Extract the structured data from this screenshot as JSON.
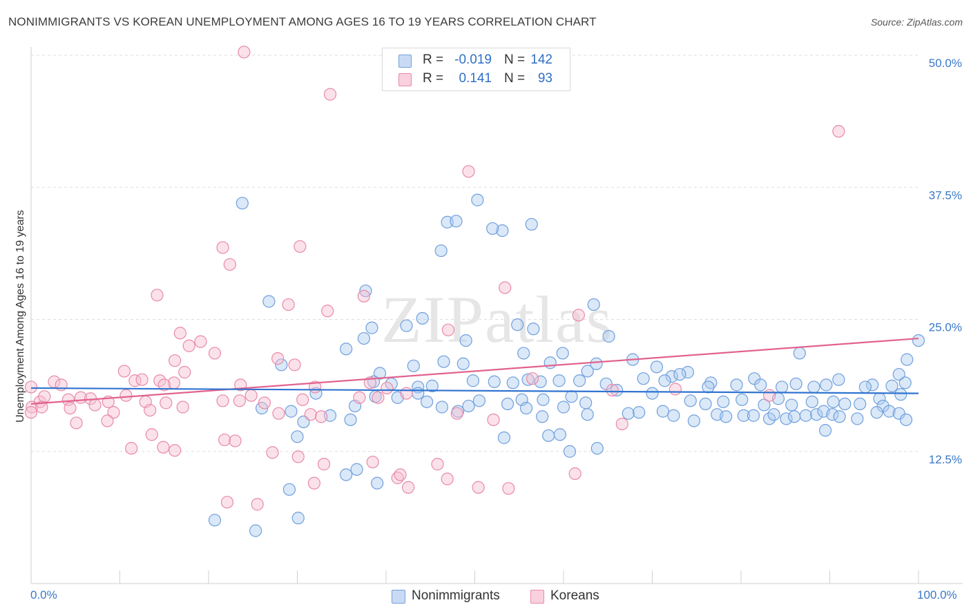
{
  "title": "NONIMMIGRANTS VS KOREAN UNEMPLOYMENT AMONG AGES 16 TO 19 YEARS CORRELATION CHART",
  "source": "Source: ZipAtlas.com",
  "watermark": "ZIPatlas",
  "legend_top": {
    "rows": [
      {
        "r_label": "R =",
        "r_value": "-0.019",
        "n_label": "N =",
        "n_value": "142"
      },
      {
        "r_label": "R =",
        "r_value": "0.141",
        "n_label": "N =",
        "n_value": "93"
      }
    ]
  },
  "legend_bottom": [
    "Nonimmigrants",
    "Koreans"
  ],
  "colors": {
    "blue_fill": "#aecbef",
    "blue_stroke": "#6f9fdc",
    "blue_line": "#2f73d0",
    "pink_fill": "#f6bfd0",
    "pink_stroke": "#e889a8",
    "pink_line": "#e2628f",
    "tick_text": "#3a78c9",
    "grid": "#dddddd"
  },
  "chart_data": {
    "type": "scatter",
    "title": "NONIMMIGRANTS VS KOREAN UNEMPLOYMENT AMONG AGES 16 TO 19 YEARS CORRELATION CHART",
    "xlabel": "",
    "ylabel": "Unemployment Among Ages 16 to 19 years",
    "xlim": [
      0,
      100
    ],
    "ylim": [
      0,
      50
    ],
    "x_tick_labels": [
      "0.0%",
      "100.0%"
    ],
    "y_ticks": [
      12.5,
      25.0,
      37.5,
      50.0
    ],
    "y_tick_labels": [
      "12.5%",
      "25.0%",
      "37.5%",
      "50.0%"
    ],
    "grid": true,
    "legend_position": "top-center",
    "series": [
      {
        "name": "Nonimmigrants",
        "r": -0.019,
        "n": 142,
        "trend": [
          [
            0,
            18.5
          ],
          [
            100,
            18.0
          ]
        ],
        "points": [
          [
            23.8,
            36.0
          ],
          [
            50.3,
            36.3
          ],
          [
            46.9,
            34.2
          ],
          [
            47.9,
            34.3
          ],
          [
            53.1,
            33.4
          ],
          [
            52.0,
            33.6
          ],
          [
            56.4,
            34.0
          ],
          [
            46.2,
            31.5
          ],
          [
            37.7,
            27.7
          ],
          [
            26.8,
            26.7
          ],
          [
            63.4,
            26.4
          ],
          [
            44.1,
            25.1
          ],
          [
            42.3,
            24.4
          ],
          [
            54.8,
            24.5
          ],
          [
            56.6,
            24.1
          ],
          [
            38.4,
            24.2
          ],
          [
            37.5,
            23.2
          ],
          [
            49.0,
            23.0
          ],
          [
            65.1,
            23.4
          ],
          [
            100.0,
            23.0
          ],
          [
            59.9,
            21.8
          ],
          [
            35.5,
            22.2
          ],
          [
            55.5,
            21.8
          ],
          [
            98.7,
            21.2
          ],
          [
            86.6,
            21.8
          ],
          [
            28.2,
            20.7
          ],
          [
            48.7,
            20.8
          ],
          [
            43.1,
            20.6
          ],
          [
            39.3,
            19.9
          ],
          [
            46.5,
            21.0
          ],
          [
            63.7,
            20.8
          ],
          [
            58.5,
            20.9
          ],
          [
            67.8,
            21.2
          ],
          [
            70.5,
            20.5
          ],
          [
            62.7,
            20.1
          ],
          [
            74.0,
            20.0
          ],
          [
            72.2,
            19.6
          ],
          [
            73.1,
            19.8
          ],
          [
            69.0,
            19.4
          ],
          [
            71.4,
            19.2
          ],
          [
            76.6,
            19.0
          ],
          [
            81.5,
            19.4
          ],
          [
            76.3,
            18.6
          ],
          [
            79.5,
            18.8
          ],
          [
            82.2,
            18.8
          ],
          [
            84.6,
            18.6
          ],
          [
            86.2,
            18.9
          ],
          [
            88.2,
            18.6
          ],
          [
            89.6,
            18.8
          ],
          [
            91.0,
            19.3
          ],
          [
            94.8,
            18.8
          ],
          [
            97.8,
            19.8
          ],
          [
            97.0,
            18.7
          ],
          [
            94.0,
            18.6
          ],
          [
            98.5,
            19.0
          ],
          [
            59.5,
            19.2
          ],
          [
            61.8,
            19.2
          ],
          [
            64.8,
            18.9
          ],
          [
            54.3,
            19.0
          ],
          [
            56.0,
            19.3
          ],
          [
            52.2,
            19.1
          ],
          [
            38.6,
            19.1
          ],
          [
            40.6,
            18.9
          ],
          [
            43.6,
            18.6
          ],
          [
            45.2,
            18.7
          ],
          [
            49.8,
            19.2
          ],
          [
            57.4,
            19.1
          ],
          [
            41.3,
            17.6
          ],
          [
            43.6,
            18.0
          ],
          [
            38.8,
            17.7
          ],
          [
            44.6,
            17.2
          ],
          [
            50.5,
            17.3
          ],
          [
            53.7,
            17.0
          ],
          [
            55.3,
            17.4
          ],
          [
            57.7,
            17.4
          ],
          [
            60.9,
            17.7
          ],
          [
            62.5,
            17.1
          ],
          [
            60.0,
            16.7
          ],
          [
            66.0,
            18.3
          ],
          [
            70.0,
            18.0
          ],
          [
            74.3,
            17.3
          ],
          [
            76.0,
            17.0
          ],
          [
            78.0,
            17.2
          ],
          [
            80.1,
            17.4
          ],
          [
            84.2,
            17.5
          ],
          [
            82.6,
            16.9
          ],
          [
            85.7,
            16.9
          ],
          [
            88.0,
            17.2
          ],
          [
            90.4,
            17.2
          ],
          [
            91.7,
            17.0
          ],
          [
            93.4,
            17.0
          ],
          [
            95.6,
            17.5
          ],
          [
            96.0,
            16.8
          ],
          [
            98.0,
            17.9
          ],
          [
            26.0,
            16.6
          ],
          [
            32.1,
            18.0
          ],
          [
            36.5,
            16.8
          ],
          [
            29.3,
            16.3
          ],
          [
            30.7,
            15.3
          ],
          [
            33.7,
            15.9
          ],
          [
            36.0,
            15.5
          ],
          [
            46.3,
            16.7
          ],
          [
            48.1,
            16.3
          ],
          [
            49.3,
            16.8
          ],
          [
            55.8,
            16.6
          ],
          [
            57.6,
            15.8
          ],
          [
            62.7,
            16.0
          ],
          [
            67.3,
            16.1
          ],
          [
            68.5,
            16.2
          ],
          [
            71.2,
            16.3
          ],
          [
            72.4,
            15.9
          ],
          [
            74.7,
            15.4
          ],
          [
            77.3,
            16.0
          ],
          [
            78.3,
            15.8
          ],
          [
            80.3,
            15.9
          ],
          [
            81.4,
            15.9
          ],
          [
            83.2,
            15.6
          ],
          [
            83.7,
            16.0
          ],
          [
            85.1,
            15.6
          ],
          [
            86.0,
            15.8
          ],
          [
            87.3,
            15.9
          ],
          [
            88.5,
            16.0
          ],
          [
            89.3,
            16.3
          ],
          [
            90.3,
            16.0
          ],
          [
            91.1,
            15.8
          ],
          [
            93.1,
            15.6
          ],
          [
            95.3,
            16.2
          ],
          [
            96.7,
            16.3
          ],
          [
            97.8,
            16.1
          ],
          [
            98.6,
            15.5
          ],
          [
            89.5,
            14.5
          ],
          [
            58.3,
            14.0
          ],
          [
            59.6,
            14.1
          ],
          [
            53.3,
            13.8
          ],
          [
            30.0,
            13.9
          ],
          [
            35.5,
            10.3
          ],
          [
            60.7,
            12.5
          ],
          [
            63.8,
            12.8
          ],
          [
            39.0,
            9.5
          ],
          [
            36.7,
            10.8
          ],
          [
            29.1,
            8.9
          ],
          [
            20.7,
            6.0
          ],
          [
            25.3,
            5.0
          ],
          [
            30.1,
            6.2
          ]
        ]
      },
      {
        "name": "Koreans",
        "r": 0.141,
        "n": 93,
        "trend": [
          [
            0,
            17.0
          ],
          [
            100,
            23.2
          ]
        ],
        "points": [
          [
            24.0,
            50.3
          ],
          [
            33.7,
            46.3
          ],
          [
            91.0,
            42.8
          ],
          [
            49.3,
            39.0
          ],
          [
            21.6,
            31.8
          ],
          [
            30.3,
            31.9
          ],
          [
            22.4,
            30.2
          ],
          [
            53.4,
            28.0
          ],
          [
            14.2,
            27.3
          ],
          [
            29.0,
            26.4
          ],
          [
            33.4,
            25.8
          ],
          [
            37.5,
            27.2
          ],
          [
            61.7,
            25.4
          ],
          [
            47.0,
            24.0
          ],
          [
            16.8,
            23.7
          ],
          [
            19.1,
            22.9
          ],
          [
            17.8,
            22.5
          ],
          [
            20.7,
            21.8
          ],
          [
            27.8,
            21.3
          ],
          [
            16.2,
            21.1
          ],
          [
            29.7,
            20.7
          ],
          [
            10.5,
            20.1
          ],
          [
            17.3,
            20.0
          ],
          [
            2.6,
            19.1
          ],
          [
            11.7,
            19.2
          ],
          [
            14.5,
            19.2
          ],
          [
            12.5,
            19.3
          ],
          [
            16.1,
            19.0
          ],
          [
            3.4,
            18.8
          ],
          [
            15.0,
            18.8
          ],
          [
            23.6,
            18.8
          ],
          [
            24.8,
            17.8
          ],
          [
            32.0,
            18.6
          ],
          [
            38.2,
            19.0
          ],
          [
            40.1,
            18.5
          ],
          [
            56.5,
            19.4
          ],
          [
            65.5,
            18.3
          ],
          [
            72.6,
            18.4
          ],
          [
            83.2,
            17.8
          ],
          [
            0.0,
            18.6
          ],
          [
            1.0,
            17.2
          ],
          [
            1.5,
            17.7
          ],
          [
            4.2,
            17.4
          ],
          [
            5.6,
            17.6
          ],
          [
            6.7,
            17.5
          ],
          [
            8.7,
            17.2
          ],
          [
            10.7,
            17.8
          ],
          [
            12.9,
            17.2
          ],
          [
            15.2,
            17.1
          ],
          [
            21.6,
            17.3
          ],
          [
            23.5,
            17.3
          ],
          [
            26.3,
            17.1
          ],
          [
            30.6,
            17.4
          ],
          [
            37.0,
            17.6
          ],
          [
            39.1,
            17.6
          ],
          [
            42.3,
            18.0
          ],
          [
            0.1,
            16.7
          ],
          [
            1.2,
            16.7
          ],
          [
            4.4,
            16.6
          ],
          [
            7.2,
            16.9
          ],
          [
            9.3,
            16.2
          ],
          [
            13.4,
            16.4
          ],
          [
            17.1,
            16.7
          ],
          [
            27.9,
            16.1
          ],
          [
            31.5,
            16.0
          ],
          [
            32.7,
            15.8
          ],
          [
            48.0,
            16.1
          ],
          [
            52.1,
            15.5
          ],
          [
            66.6,
            15.1
          ],
          [
            5.1,
            15.2
          ],
          [
            8.6,
            15.4
          ],
          [
            0.0,
            16.2
          ],
          [
            13.6,
            14.1
          ],
          [
            14.9,
            12.9
          ],
          [
            11.3,
            12.8
          ],
          [
            16.2,
            12.6
          ],
          [
            21.8,
            13.6
          ],
          [
            23.0,
            13.5
          ],
          [
            27.2,
            12.4
          ],
          [
            30.1,
            12.0
          ],
          [
            33.0,
            11.3
          ],
          [
            38.5,
            11.5
          ],
          [
            45.8,
            11.3
          ],
          [
            46.9,
            9.9
          ],
          [
            41.3,
            10.0
          ],
          [
            41.6,
            10.3
          ],
          [
            61.3,
            10.4
          ],
          [
            31.9,
            9.5
          ],
          [
            42.5,
            9.1
          ],
          [
            50.4,
            9.1
          ],
          [
            53.8,
            9.0
          ],
          [
            22.1,
            7.7
          ],
          [
            25.5,
            7.5
          ]
        ]
      }
    ]
  }
}
